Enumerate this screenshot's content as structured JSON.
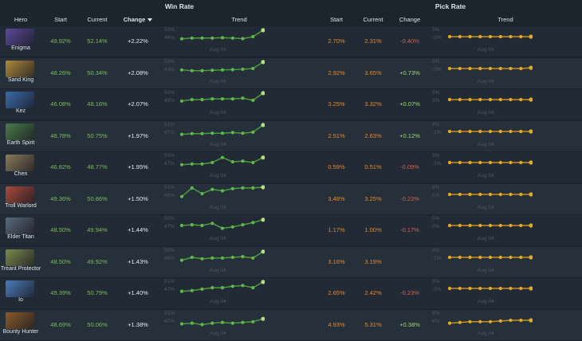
{
  "header": {
    "win_rate_title": "Win Rate",
    "pick_rate_title": "Pick Rate",
    "columns": {
      "hero": "Hero",
      "wr_start": "Start",
      "wr_current": "Current",
      "wr_change": "Change",
      "wr_trend": "Trend",
      "pr_start": "Start",
      "pr_current": "Current",
      "pr_change": "Change",
      "pr_trend": "Trend"
    }
  },
  "trend_x_label": "Aug 04",
  "colors": {
    "win_line": "#4d9a3c",
    "win_point": "#5fb84a",
    "win_highlight": "#b4e07a",
    "pick_line": "#c98f1e",
    "pick_point": "#e3a928"
  },
  "heroes": [
    {
      "name": "Enigma",
      "portrait_color": "#5a4a9a",
      "wr_start": "49.92%",
      "wr_current": "52.14%",
      "wr_change": "+2.22%",
      "wr_top": "53%",
      "wr_bottom": "46%",
      "wr_trend": [
        0.35,
        0.4,
        0.4,
        0.4,
        0.42,
        0.4,
        0.36,
        0.5,
        0.95
      ],
      "pr_start": "2.70%",
      "pr_current": "2.31%",
      "pr_change": "-0.40%",
      "pr_top": "5%",
      "pr_bottom": "-2%",
      "pr_trend": [
        0.5,
        0.5,
        0.5,
        0.5,
        0.5,
        0.5,
        0.5,
        0.5,
        0.5
      ]
    },
    {
      "name": "Sand King",
      "portrait_color": "#b08a3a",
      "wr_start": "48.26%",
      "wr_current": "50.34%",
      "wr_change": "+2.08%",
      "wr_top": "53%",
      "wr_bottom": "43%",
      "wr_trend": [
        0.4,
        0.35,
        0.35,
        0.38,
        0.4,
        0.42,
        0.45,
        0.5,
        0.95
      ],
      "pr_start": "2.92%",
      "pr_current": "3.65%",
      "pr_change": "+0.73%",
      "pr_top": "9%",
      "pr_bottom": "-3%",
      "pr_trend": [
        0.5,
        0.5,
        0.5,
        0.5,
        0.5,
        0.5,
        0.5,
        0.5,
        0.55
      ]
    },
    {
      "name": "Kez",
      "portrait_color": "#3a6aa8",
      "wr_start": "46.08%",
      "wr_current": "48.16%",
      "wr_change": "+2.07%",
      "wr_top": "50%",
      "wr_bottom": "43%",
      "wr_trend": [
        0.4,
        0.5,
        0.5,
        0.55,
        0.55,
        0.55,
        0.6,
        0.45,
        0.95
      ],
      "pr_start": "3.25%",
      "pr_current": "3.32%",
      "pr_change": "+0.07%",
      "pr_top": "5%",
      "pr_bottom": "3%",
      "pr_trend": [
        0.5,
        0.5,
        0.5,
        0.5,
        0.5,
        0.5,
        0.5,
        0.5,
        0.5
      ]
    },
    {
      "name": "Earth Spirit",
      "portrait_color": "#4a7a4a",
      "wr_start": "48.78%",
      "wr_current": "50.75%",
      "wr_change": "+1.97%",
      "wr_top": "51%",
      "wr_bottom": "47%",
      "wr_trend": [
        0.3,
        0.35,
        0.35,
        0.38,
        0.38,
        0.42,
        0.38,
        0.45,
        0.95
      ],
      "pr_start": "2.51%",
      "pr_current": "2.63%",
      "pr_change": "+0.12%",
      "pr_top": "9%",
      "pr_bottom": "-1%",
      "pr_trend": [
        0.5,
        0.5,
        0.5,
        0.5,
        0.5,
        0.5,
        0.5,
        0.5,
        0.5
      ]
    },
    {
      "name": "Chen",
      "portrait_color": "#8a7a5a",
      "wr_start": "46.82%",
      "wr_current": "48.77%",
      "wr_change": "+1.95%",
      "wr_top": "50%",
      "wr_bottom": "47%",
      "wr_trend": [
        0.35,
        0.4,
        0.4,
        0.5,
        0.85,
        0.55,
        0.6,
        0.5,
        0.85
      ],
      "pr_start": "0.59%",
      "pr_current": "0.51%",
      "pr_change": "-0.09%",
      "pr_top": "3%",
      "pr_bottom": "-1%",
      "pr_trend": [
        0.5,
        0.5,
        0.5,
        0.5,
        0.5,
        0.5,
        0.5,
        0.5,
        0.5
      ]
    },
    {
      "name": "Troll Warlord",
      "portrait_color": "#a84a3a",
      "wr_start": "49.36%",
      "wr_current": "50.86%",
      "wr_change": "+1.50%",
      "wr_top": "51%",
      "wr_bottom": "49%",
      "wr_trend": [
        0.35,
        0.95,
        0.55,
        0.85,
        0.75,
        0.9,
        0.95,
        0.95,
        1.0
      ],
      "pr_start": "3.48%",
      "pr_current": "3.25%",
      "pr_change": "-0.23%",
      "pr_top": "6%",
      "pr_bottom": "1%",
      "pr_trend": [
        0.5,
        0.5,
        0.5,
        0.5,
        0.5,
        0.5,
        0.5,
        0.5,
        0.5
      ]
    },
    {
      "name": "Elder Titan",
      "portrait_color": "#5a6a7a",
      "wr_start": "48.50%",
      "wr_current": "49.94%",
      "wr_change": "+1.44%",
      "wr_top": "50%",
      "wr_bottom": "47%",
      "wr_trend": [
        0.5,
        0.55,
        0.5,
        0.65,
        0.3,
        0.4,
        0.55,
        0.7,
        0.9
      ],
      "pr_start": "1.17%",
      "pr_current": "1.00%",
      "pr_change": "-0.17%",
      "pr_top": "5%",
      "pr_bottom": "0%",
      "pr_trend": [
        0.5,
        0.5,
        0.5,
        0.5,
        0.5,
        0.5,
        0.5,
        0.5,
        0.5
      ]
    },
    {
      "name": "Treant Protector",
      "portrait_color": "#7a8a4a",
      "wr_start": "48.50%",
      "wr_current": "49.92%",
      "wr_change": "+1.43%",
      "wr_top": "50%",
      "wr_bottom": "46%",
      "wr_trend": [
        0.3,
        0.5,
        0.4,
        0.45,
        0.45,
        0.5,
        0.55,
        0.45,
        0.9
      ],
      "pr_start": "3.16%",
      "pr_current": "3.19%",
      "pr_change": "",
      "pr_top": "9%",
      "pr_bottom": "-1%",
      "pr_trend": [
        0.5,
        0.5,
        0.5,
        0.5,
        0.5,
        0.5,
        0.5,
        0.5,
        0.5
      ]
    },
    {
      "name": "Io",
      "portrait_color": "#4a7ab8",
      "wr_start": "49.39%",
      "wr_current": "50.79%",
      "wr_change": "+1.40%",
      "wr_top": "51%",
      "wr_bottom": "47%",
      "wr_trend": [
        0.3,
        0.35,
        0.45,
        0.55,
        0.55,
        0.65,
        0.7,
        0.55,
        0.95
      ],
      "pr_start": "2.65%",
      "pr_current": "2.42%",
      "pr_change": "-0.23%",
      "pr_top": "9%",
      "pr_bottom": "-3%",
      "pr_trend": [
        0.5,
        0.5,
        0.5,
        0.5,
        0.5,
        0.5,
        0.5,
        0.5,
        0.5
      ]
    },
    {
      "name": "Bounty Hunter",
      "portrait_color": "#8a5a2a",
      "wr_start": "48.69%",
      "wr_current": "50.06%",
      "wr_change": "+1.38%",
      "wr_top": "51%",
      "wr_bottom": "47%",
      "wr_trend": [
        0.25,
        0.3,
        0.2,
        0.3,
        0.35,
        0.3,
        0.35,
        0.4,
        0.6
      ],
      "pr_start": "4.93%",
      "pr_current": "5.31%",
      "pr_change": "+0.38%",
      "pr_top": "8%",
      "pr_bottom": "4%",
      "pr_trend": [
        0.3,
        0.35,
        0.4,
        0.4,
        0.4,
        0.45,
        0.5,
        0.5,
        0.5
      ]
    }
  ]
}
